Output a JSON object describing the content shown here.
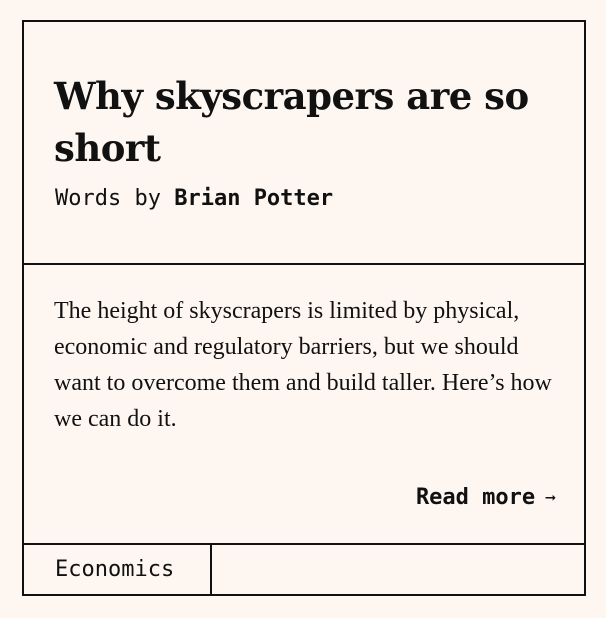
{
  "article": {
    "title": "Why skyscrapers are so short",
    "byline_prefix": "Words by",
    "author": "Brian Potter",
    "summary": "The height of skyscrapers is limited by physical, economic and regulatory barriers, but we should want to overcome them and build taller. Here’s how we can do it.",
    "read_more_label": "Read more",
    "read_more_icon": "arrow-right-icon",
    "tag": "Economics"
  },
  "colors": {
    "background": "#fdf6f1",
    "border": "#111111",
    "text": "#111111"
  }
}
